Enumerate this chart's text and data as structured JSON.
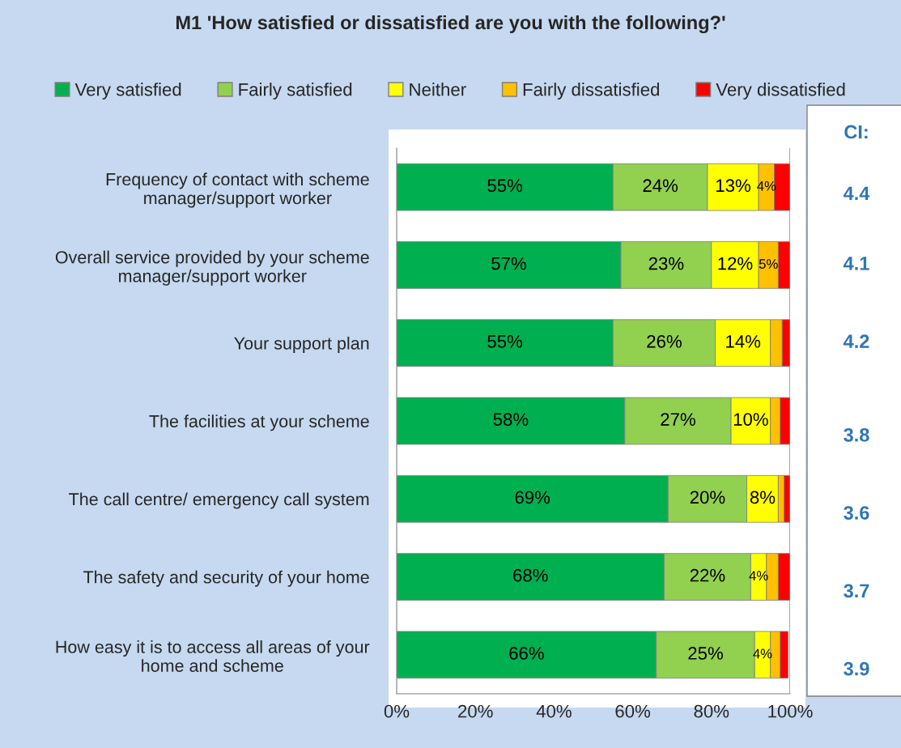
{
  "chart_data": {
    "type": "bar",
    "orientation": "horizontal",
    "stacked": true,
    "title": "M1 'How satisfied or dissatisfied are you with the following?'",
    "categories": [
      "Frequency of contact with scheme\nmanager/support worker",
      "Overall service provided by your scheme\nmanager/support worker",
      "Your support plan",
      "The facilities at your scheme",
      "The call centre/ emergency call system",
      "The safety and security of your home",
      "How easy it is to access all areas of your\nhome and scheme"
    ],
    "series": [
      {
        "name": "Very satisfied",
        "color": "#00b050",
        "values": [
          55,
          57,
          55,
          58,
          69,
          68,
          66
        ],
        "value_labels": [
          "55%",
          "57%",
          "55%",
          "58%",
          "69%",
          "68%",
          "66%"
        ]
      },
      {
        "name": "Fairly satisfied",
        "color": "#92d050",
        "values": [
          24,
          23,
          26,
          27,
          20,
          22,
          25
        ],
        "value_labels": [
          "24%",
          "23%",
          "26%",
          "27%",
          "20%",
          "22%",
          "25%"
        ]
      },
      {
        "name": "Neither",
        "color": "#ffff00",
        "values": [
          13,
          12,
          14,
          10,
          8,
          4,
          4
        ],
        "value_labels": [
          "13%",
          "12%",
          "14%",
          "10%",
          "8%",
          "4%",
          "4%"
        ]
      },
      {
        "name": "Fairly dissatisfied",
        "color": "#ffc000",
        "values": [
          4,
          5,
          3,
          2.5,
          1.5,
          3,
          2.5
        ],
        "value_labels": [
          "4%",
          "5%",
          null,
          null,
          null,
          null,
          null
        ]
      },
      {
        "name": "Very dissatisfied",
        "color": "#ff0000",
        "values": [
          4,
          3,
          2,
          2.5,
          1.5,
          3,
          2
        ],
        "value_labels": [
          null,
          null,
          null,
          null,
          null,
          null,
          null
        ]
      }
    ],
    "xlim": [
      0,
      100
    ],
    "xticks": [
      {
        "value": 0,
        "label": "0%"
      },
      {
        "value": 20,
        "label": "20%"
      },
      {
        "value": 40,
        "label": "40%"
      },
      {
        "value": 60,
        "label": "60%"
      },
      {
        "value": 80,
        "label": "80%"
      },
      {
        "value": 100,
        "label": "100%"
      }
    ],
    "legend": "top",
    "grid": false,
    "annotations": [
      "CI:",
      "4.4",
      "4.1",
      "4.2",
      "3.8",
      "3.6",
      "3.7",
      "3.9"
    ]
  }
}
